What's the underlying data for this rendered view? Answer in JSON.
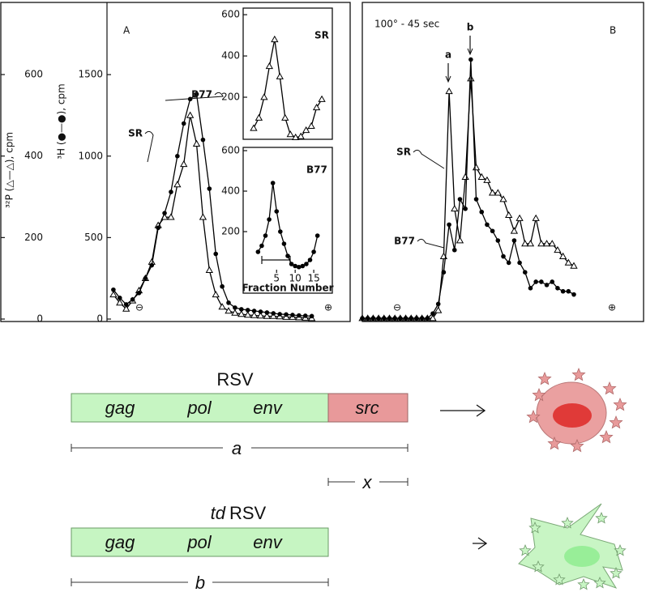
{
  "chart_data": [
    {
      "type": "line",
      "panel_label": "A",
      "y_label": "³²P (△—△), cpm",
      "y2_label": "³H (●—●), cpm",
      "x": [
        1,
        2,
        3,
        4,
        5,
        6,
        7,
        8,
        9,
        10,
        11,
        12,
        13,
        14,
        15,
        16,
        17,
        18,
        19,
        20,
        21,
        22,
        23,
        24,
        25,
        26,
        27,
        28,
        29,
        30,
        31,
        32
      ],
      "xlim": [
        0,
        38
      ],
      "ylim": [
        -6,
        777
      ],
      "yticks": [
        0,
        200,
        400,
        600
      ],
      "y2lim": [
        -15,
        1943
      ],
      "y2ticks": [
        0,
        500,
        1000,
        1500
      ],
      "series": [
        {
          "name": "SR",
          "marker": "triangle",
          "color": "#000000",
          "values": [
            60,
            40,
            25,
            45,
            70,
            100,
            140,
            230,
            250,
            250,
            330,
            380,
            500,
            430,
            250,
            120,
            60,
            30,
            20,
            15,
            12,
            10,
            9,
            8,
            7,
            7,
            6,
            5,
            5,
            4,
            3,
            2
          ]
        },
        {
          "name": "B77",
          "marker": "circle",
          "color": "#000000",
          "axis": "y2",
          "values": [
            180,
            130,
            90,
            120,
            160,
            250,
            330,
            560,
            650,
            780,
            1000,
            1200,
            1350,
            1380,
            1100,
            800,
            400,
            200,
            100,
            70,
            60,
            55,
            50,
            45,
            40,
            35,
            30,
            28,
            25,
            22,
            20,
            18
          ]
        }
      ],
      "end_labels": [
        "⊖",
        "⊕"
      ]
    },
    {
      "type": "line",
      "title": "SR",
      "marker": "triangle",
      "color": "#000000",
      "x": [
        1,
        2,
        3,
        4,
        5,
        6,
        7,
        8,
        9,
        10,
        11,
        12,
        13,
        14
      ],
      "values": [
        50,
        100,
        200,
        350,
        480,
        300,
        100,
        20,
        5,
        10,
        40,
        60,
        150,
        190
      ],
      "xlim": [
        -1,
        16
      ],
      "ylim": [
        -4,
        632
      ],
      "yticks": [
        200,
        400,
        600
      ]
    },
    {
      "type": "line",
      "title": "B77",
      "marker": "circle",
      "color": "#000000",
      "x": [
        0,
        1,
        2,
        3,
        4,
        5,
        6,
        7,
        8,
        9,
        10,
        11,
        12,
        13,
        14,
        15,
        16
      ],
      "values": [
        100,
        130,
        180,
        260,
        440,
        300,
        200,
        140,
        80,
        40,
        30,
        25,
        30,
        40,
        60,
        100,
        180
      ],
      "xlim": [
        -4,
        20
      ],
      "ylim": [
        -104,
        616
      ],
      "yticks": [
        200,
        400,
        600
      ],
      "xticks": [
        5,
        10,
        15
      ],
      "x_label": "Fraction Number"
    },
    {
      "type": "line",
      "panel_label": "B",
      "subtitle": "100° - 45 sec",
      "x": [
        1,
        2,
        3,
        4,
        5,
        6,
        7,
        8,
        9,
        10,
        11,
        12,
        13,
        14,
        15,
        16,
        17,
        18,
        19,
        20,
        21,
        22,
        23,
        24,
        25,
        26,
        27,
        28,
        29,
        30,
        31,
        32,
        33,
        34,
        35,
        36,
        37,
        38,
        39,
        40
      ],
      "xlim": [
        1,
        53
      ],
      "ylim": [
        0,
        100
      ],
      "series": [
        {
          "name": "SR",
          "marker": "triangle",
          "color": "#000000",
          "values": [
            0.5,
            0.5,
            0.5,
            0.5,
            0.5,
            0.5,
            0.5,
            0.5,
            0.5,
            0.5,
            0.5,
            0.5,
            0.5,
            0.5,
            3,
            20,
            72,
            35,
            25,
            45,
            76,
            48,
            45,
            44,
            40,
            40,
            38,
            33,
            28,
            32,
            24,
            24,
            32,
            24,
            24,
            24,
            22,
            20,
            18,
            17
          ]
        },
        {
          "name": "B77",
          "marker": "circle",
          "color": "#000000",
          "values": [
            0.5,
            0.5,
            0.5,
            0.5,
            0.5,
            0.5,
            0.5,
            0.5,
            0.5,
            0.5,
            0.5,
            0.5,
            0.5,
            2,
            5,
            15,
            30,
            22,
            38,
            35,
            82,
            38,
            34,
            30,
            28,
            25,
            20,
            18,
            25,
            18,
            15,
            10,
            12,
            12,
            11,
            12,
            10,
            9,
            9,
            8
          ]
        }
      ],
      "peak_labels": [
        "a",
        "b"
      ],
      "end_labels": [
        "⊖",
        "⊕"
      ]
    }
  ],
  "diagram": {
    "rsv": {
      "title": "RSV",
      "genes": [
        "gag",
        "pol",
        "env",
        "src"
      ],
      "length_label": "a",
      "src_length_label": "x"
    },
    "td_rsv": {
      "prefix": "td",
      "title": "RSV",
      "genes": [
        "gag",
        "pol",
        "env"
      ],
      "length_label": "b"
    }
  }
}
